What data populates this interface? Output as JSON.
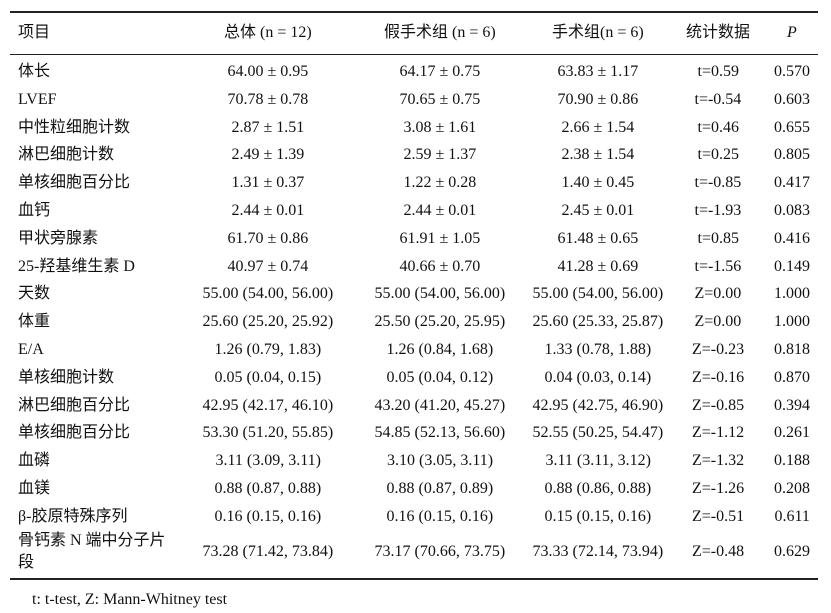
{
  "table": {
    "header": [
      "项目",
      "总体 (n = 12)",
      "假手术组 (n = 6)",
      "手术组(n = 6)",
      "统计数据",
      "P"
    ],
    "rows": [
      [
        "体长",
        "64.00 ± 0.95",
        "64.17 ± 0.75",
        "63.83 ± 1.17",
        "t=0.59",
        "0.570"
      ],
      [
        "LVEF",
        "70.78 ± 0.78",
        "70.65 ± 0.75",
        "70.90 ± 0.86",
        "t=-0.54",
        "0.603"
      ],
      [
        "中性粒细胞计数",
        "2.87 ± 1.51",
        "3.08 ± 1.61",
        "2.66 ± 1.54",
        "t=0.46",
        "0.655"
      ],
      [
        "淋巴细胞计数",
        "2.49 ± 1.39",
        "2.59 ± 1.37",
        "2.38 ± 1.54",
        "t=0.25",
        "0.805"
      ],
      [
        "单核细胞百分比",
        "1.31 ± 0.37",
        "1.22 ± 0.28",
        "1.40 ± 0.45",
        "t=-0.85",
        "0.417"
      ],
      [
        "血钙",
        "2.44 ± 0.01",
        "2.44 ± 0.01",
        "2.45 ± 0.01",
        "t=-1.93",
        "0.083"
      ],
      [
        "甲状旁腺素",
        "61.70 ± 0.86",
        "61.91 ± 1.05",
        "61.48 ± 0.65",
        "t=0.85",
        "0.416"
      ],
      [
        "25-羟基维生素 D",
        "40.97 ± 0.74",
        "40.66 ± 0.70",
        "41.28 ± 0.69",
        "t=-1.56",
        "0.149"
      ],
      [
        "天数",
        "55.00 (54.00, 56.00)",
        "55.00 (54.00, 56.00)",
        "55.00 (54.00, 56.00)",
        "Z=0.00",
        "1.000"
      ],
      [
        "体重",
        "25.60 (25.20, 25.92)",
        "25.50 (25.20, 25.95)",
        "25.60 (25.33, 25.87)",
        "Z=0.00",
        "1.000"
      ],
      [
        "E/A",
        "1.26 (0.79, 1.83)",
        "1.26 (0.84, 1.68)",
        "1.33 (0.78, 1.88)",
        "Z=-0.23",
        "0.818"
      ],
      [
        "单核细胞计数",
        "0.05 (0.04, 0.15)",
        "0.05 (0.04, 0.12)",
        "0.04 (0.03, 0.14)",
        "Z=-0.16",
        "0.870"
      ],
      [
        "淋巴细胞百分比",
        "42.95 (42.17, 46.10)",
        "43.20 (41.20, 45.27)",
        "42.95 (42.75, 46.90)",
        "Z=-0.85",
        "0.394"
      ],
      [
        "单核细胞百分比",
        "53.30 (51.20, 55.85)",
        "54.85 (52.13, 56.60)",
        "52.55 (50.25, 54.47)",
        "Z=-1.12",
        "0.261"
      ],
      [
        "血磷",
        "3.11 (3.09, 3.11)",
        "3.10 (3.05, 3.11)",
        "3.11 (3.11, 3.12)",
        "Z=-1.32",
        "0.188"
      ],
      [
        "血镁",
        "0.88 (0.87, 0.88)",
        "0.88 (0.87, 0.89)",
        "0.88 (0.86, 0.88)",
        "Z=-1.26",
        "0.208"
      ],
      [
        "β-胶原特殊序列",
        "0.16 (0.15, 0.16)",
        "0.16 (0.15, 0.16)",
        "0.15 (0.15, 0.16)",
        "Z=-0.51",
        "0.611"
      ],
      [
        "骨钙素 N 端中分子片段",
        "73.28 (71.42, 73.84)",
        "73.17 (70.66, 73.75)",
        "73.33 (72.14, 73.94)",
        "Z=-0.48",
        "0.629"
      ]
    ],
    "footnote": "t: t-test, Z: Mann-Whitney test"
  }
}
